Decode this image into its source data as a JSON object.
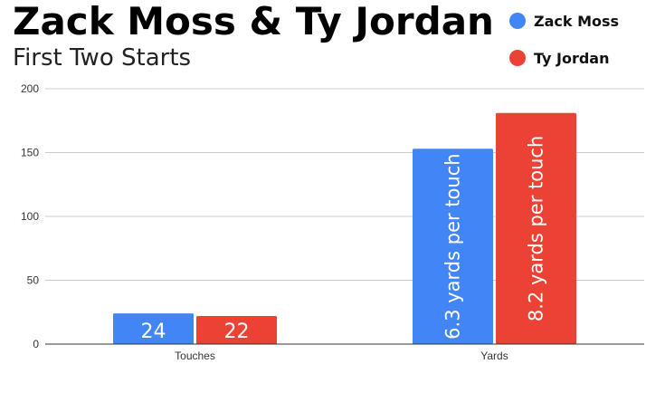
{
  "chart_data": {
    "type": "bar",
    "title": "Zack Moss & Ty Jordan",
    "subtitle": "First Two Starts",
    "categories": [
      "Touches",
      "Yards"
    ],
    "series": [
      {
        "name": "Zack Moss",
        "color": "#4285F4",
        "values": [
          24,
          153
        ],
        "labels": [
          "24",
          "6.3 yards per touch"
        ]
      },
      {
        "name": "Ty Jordan",
        "color": "#EA4335",
        "values": [
          22,
          181
        ],
        "labels": [
          "22",
          "8.2 yards per touch"
        ]
      }
    ],
    "ylim": [
      0,
      200
    ],
    "yticks": [
      "0",
      "50",
      "100",
      "150",
      "200"
    ],
    "grid": true,
    "legend": "top-right"
  }
}
